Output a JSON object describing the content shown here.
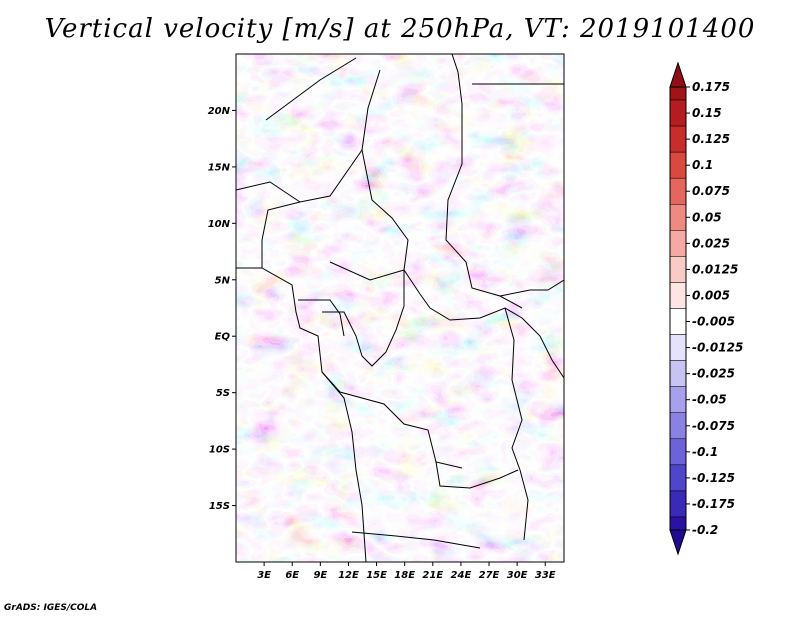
{
  "title": "Vertical velocity [m/s] at 250hPa, VT: 2019101400",
  "credit": "GrADS: IGES/COLA",
  "map": {
    "lon_range": [
      0,
      35
    ],
    "lat_range": [
      -20,
      25
    ],
    "lat_ticks": [
      {
        "lat": 20,
        "label": "20N"
      },
      {
        "lat": 15,
        "label": "15N"
      },
      {
        "lat": 10,
        "label": "10N"
      },
      {
        "lat": 5,
        "label": "5N"
      },
      {
        "lat": 0,
        "label": "EQ"
      },
      {
        "lat": -5,
        "label": "5S"
      },
      {
        "lat": -10,
        "label": "10S"
      },
      {
        "lat": -15,
        "label": "15S"
      }
    ],
    "lon_ticks": [
      {
        "lon": 3,
        "label": "3E"
      },
      {
        "lon": 6,
        "label": "6E"
      },
      {
        "lon": 9,
        "label": "9E"
      },
      {
        "lon": 12,
        "label": "12E"
      },
      {
        "lon": 15,
        "label": "15E"
      },
      {
        "lon": 18,
        "label": "18E"
      },
      {
        "lon": 21,
        "label": "21E"
      },
      {
        "lon": 24,
        "label": "24E"
      },
      {
        "lon": 27,
        "label": "27E"
      },
      {
        "lon": 30,
        "label": "30E"
      },
      {
        "lon": 33,
        "label": "33E"
      }
    ]
  },
  "colorbar": {
    "levels": [
      {
        "label": "0.175",
        "color": "#a01418"
      },
      {
        "label": "0.15",
        "color": "#b51c1f"
      },
      {
        "label": "0.125",
        "color": "#c92d2b"
      },
      {
        "label": "0.1",
        "color": "#da4840"
      },
      {
        "label": "0.075",
        "color": "#e4665c"
      },
      {
        "label": "0.05",
        "color": "#ee8a82"
      },
      {
        "label": "0.025",
        "color": "#f4aaa3"
      },
      {
        "label": "0.0125",
        "color": "#f9cbc6"
      },
      {
        "label": "0.005",
        "color": "#fce5e2"
      },
      {
        "label": "-0.005",
        "color": "#ffffff"
      },
      {
        "label": "-0.0125",
        "color": "#e4e3fb"
      },
      {
        "label": "-0.025",
        "color": "#c7c4f4"
      },
      {
        "label": "-0.05",
        "color": "#a7a1ec"
      },
      {
        "label": "-0.075",
        "color": "#8a82e3"
      },
      {
        "label": "-0.1",
        "color": "#6c63d9"
      },
      {
        "label": "-0.125",
        "color": "#5046cb"
      },
      {
        "label": "-0.175",
        "color": "#3a2ab8"
      },
      {
        "label": "-0.2",
        "color": "#2a12a3"
      }
    ],
    "top_color": "#8e0f15",
    "bottom_color": "#1f0a92"
  }
}
